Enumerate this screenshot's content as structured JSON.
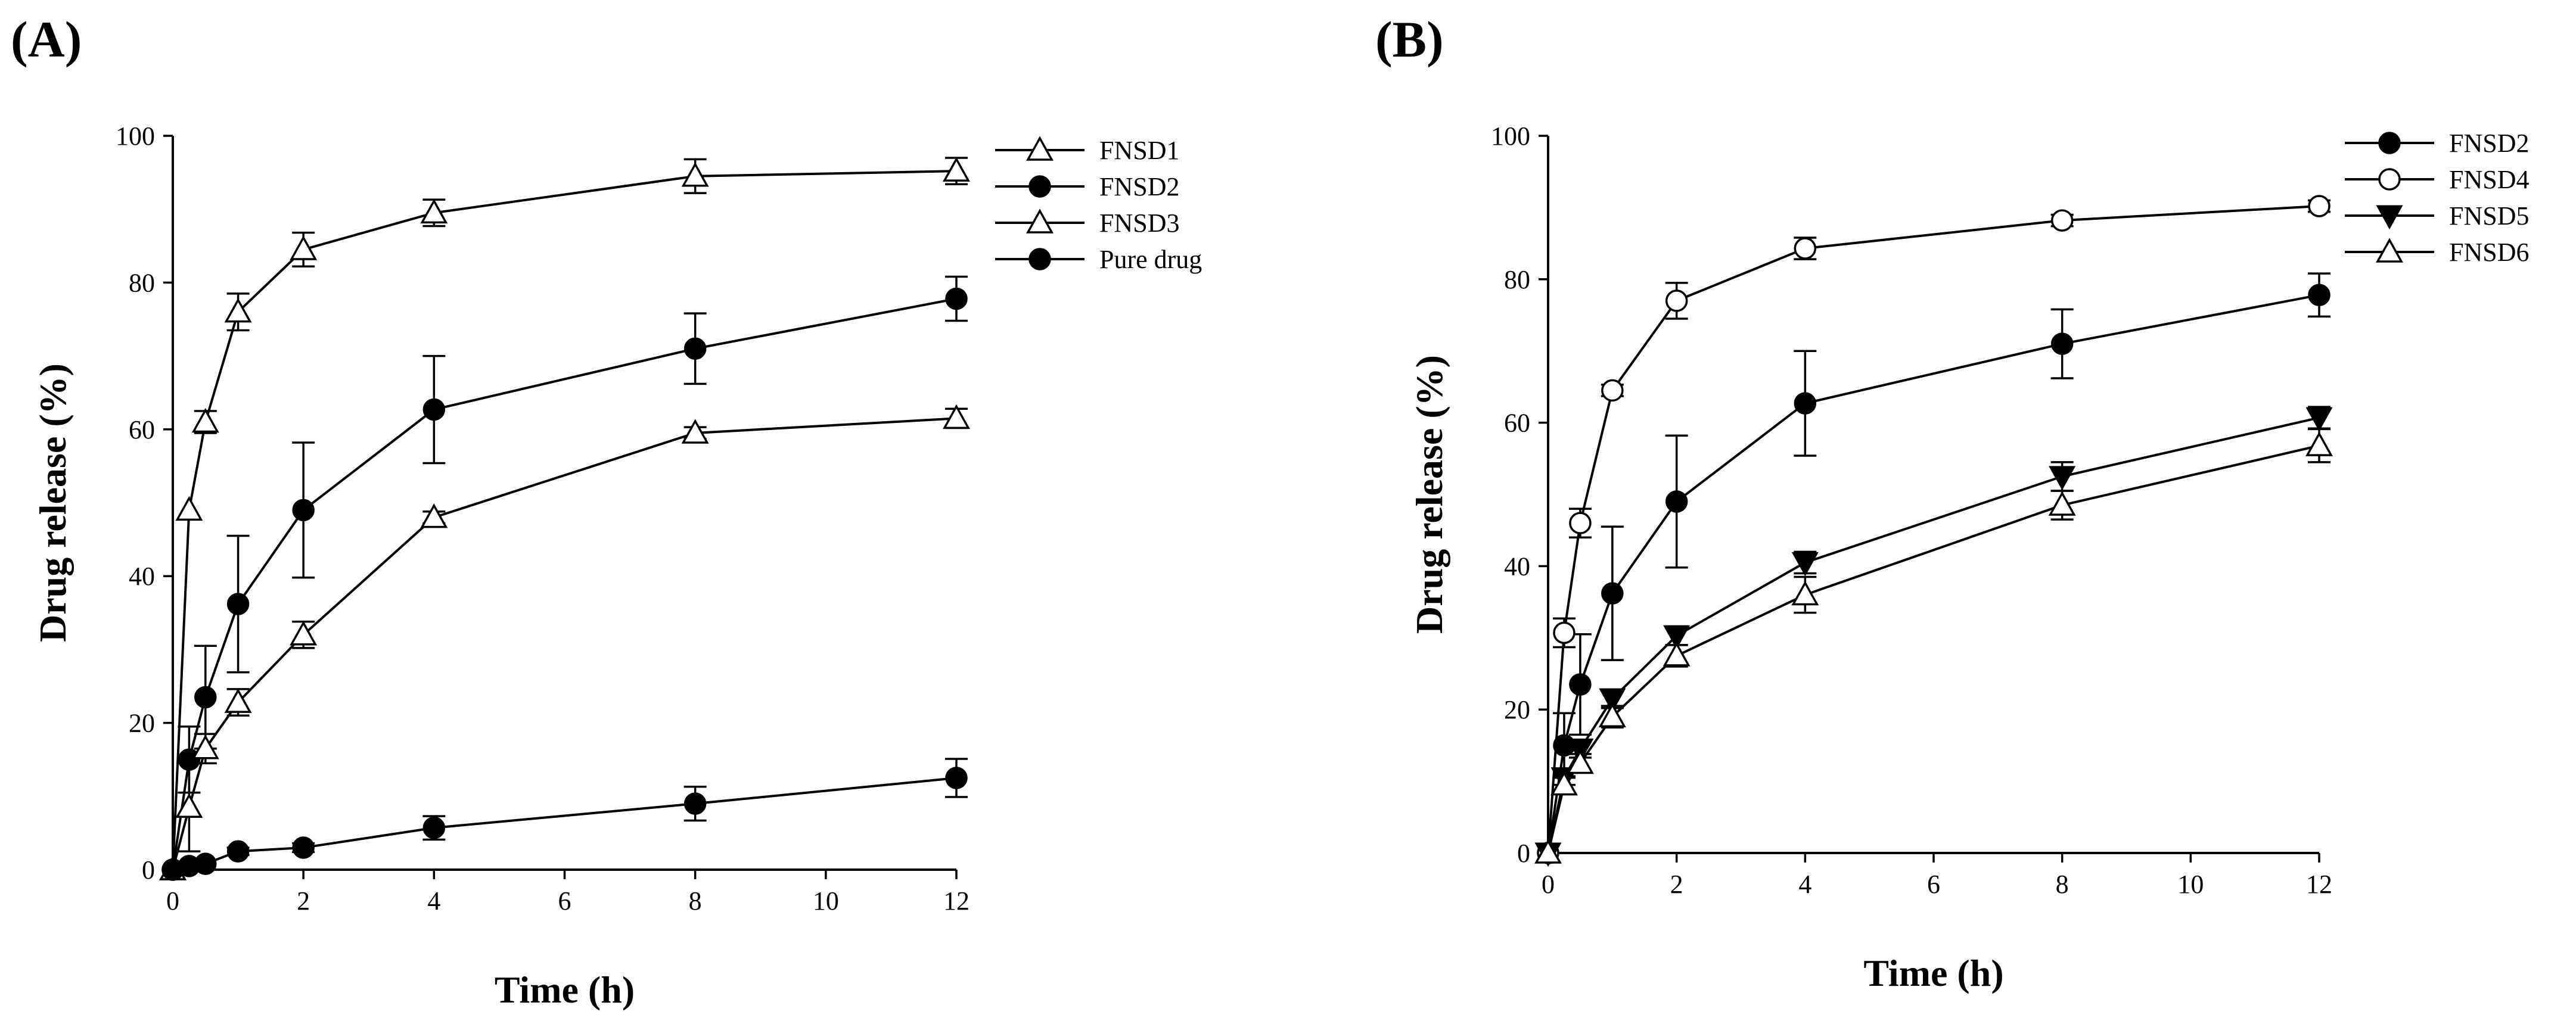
{
  "chart_data": [
    {
      "type": "line",
      "panel_label": "(A)",
      "xlabel": "Time (h)",
      "ylabel": "Drug release (%)",
      "xlim": [
        0,
        12
      ],
      "ylim": [
        0,
        100
      ],
      "xticks": [
        0,
        2,
        4,
        6,
        8,
        10,
        12
      ],
      "yticks": [
        0,
        20,
        40,
        60,
        80,
        100
      ],
      "legend_position": "top-right",
      "x": [
        0,
        0.25,
        0.5,
        1,
        2,
        4,
        8,
        12
      ],
      "series": [
        {
          "name": "FNSD1",
          "marker": "triangle-open",
          "values": [
            0,
            49,
            61,
            76,
            84.5,
            89.5,
            94.5,
            95.2
          ],
          "errors": [
            0,
            0,
            1.5,
            2.5,
            2.3,
            1.8,
            2.3,
            1.8
          ]
        },
        {
          "name": "FNSD2",
          "marker": "circle-filled",
          "values": [
            0,
            15,
            23.5,
            36.2,
            49,
            62.7,
            71,
            77.8
          ],
          "errors": [
            0,
            4.5,
            7,
            9.3,
            9.2,
            7.3,
            4.8,
            3
          ]
        },
        {
          "name": "FNSD3",
          "marker": "triangle-open",
          "values": [
            0,
            8.5,
            16.5,
            22.8,
            32,
            48,
            59.5,
            61.5
          ],
          "errors": [
            0,
            6,
            2,
            1.8,
            1.8,
            0.8,
            0.8,
            1.3
          ]
        },
        {
          "name": "Pure drug",
          "marker": "circle-filled",
          "values": [
            0,
            0.5,
            0.8,
            2.5,
            3,
            5.7,
            9,
            12.5
          ],
          "errors": [
            0,
            0,
            0,
            0.5,
            0.6,
            1.6,
            2.3,
            2.6
          ]
        }
      ]
    },
    {
      "type": "line",
      "panel_label": "(B)",
      "xlabel": "Time (h)",
      "ylabel": "Drug release (%)",
      "xlim": [
        0,
        12
      ],
      "ylim": [
        0,
        100
      ],
      "xticks": [
        0,
        2,
        4,
        6,
        8,
        10,
        12
      ],
      "yticks": [
        0,
        20,
        40,
        60,
        80,
        100
      ],
      "legend_position": "top-right",
      "x": [
        0,
        0.25,
        0.5,
        1,
        2,
        4,
        8,
        12
      ],
      "series": [
        {
          "name": "FNSD2",
          "marker": "circle-filled",
          "values": [
            0,
            15,
            23.5,
            36.2,
            49,
            62.7,
            71,
            77.8
          ],
          "errors": [
            0,
            4.5,
            7,
            9.3,
            9.2,
            7.3,
            4.8,
            3
          ]
        },
        {
          "name": "FNSD4",
          "marker": "circle-open",
          "values": [
            0,
            30.7,
            46,
            64.5,
            77,
            84.3,
            88.2,
            90.2
          ],
          "errors": [
            0,
            2,
            2,
            0.8,
            2.5,
            1.5,
            0.8,
            0.8
          ]
        },
        {
          "name": "FNSD5",
          "marker": "triangle-down-filled",
          "values": [
            0,
            10.5,
            14.5,
            21.5,
            30.3,
            40.5,
            52.5,
            60.7
          ],
          "errors": [
            0,
            1,
            1.2,
            1.3,
            1.3,
            1.5,
            2,
            1.5
          ]
        },
        {
          "name": "FNSD6",
          "marker": "triangle-open",
          "values": [
            0,
            9.5,
            12.5,
            19,
            27.5,
            36,
            48.5,
            56.8
          ],
          "errors": [
            0,
            1.2,
            1.3,
            1.5,
            1.5,
            2.5,
            2,
            2.3
          ]
        }
      ]
    }
  ]
}
